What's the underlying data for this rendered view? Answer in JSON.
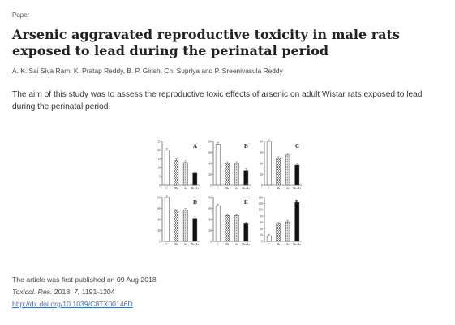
{
  "header": {
    "eyebrow": "Paper"
  },
  "article": {
    "title": "Arsenic aggravated reproductive toxicity in male rats exposed to lead during the perinatal period",
    "authors": "A. K. Sai Siva Ram, K. Pratap Reddy, B. P. Girish, Ch. Supriya and P. Sreenivasula Reddy",
    "abstract": "The aim of this study was to assess the reproductive toxic effects of arsenic on adult Wistar rats exposed to lead during the perinatal period."
  },
  "publication": {
    "published_line": "The article was first published on 09 Aug 2018",
    "journal": "Toxicol. Res.",
    "year": "2018,",
    "volume": "7,",
    "pages": "1191-1204",
    "doi": "http://dx.doi.org/10.1039/C8TX00146D"
  },
  "chart_data": [
    {
      "type": "bar",
      "panel_label": "A",
      "categories": [
        "C",
        "Pb",
        "As",
        "Pb+As"
      ],
      "values": [
        20,
        14,
        13,
        7
      ],
      "ylim": [
        0,
        25
      ],
      "ytick_labels": [
        "0",
        "5",
        "10",
        "15",
        "20",
        "25"
      ]
    },
    {
      "type": "bar",
      "panel_label": "B",
      "categories": [
        "C",
        "Pb",
        "As",
        "Pb+As"
      ],
      "values": [
        75,
        40,
        40,
        27
      ],
      "ylim": [
        0,
        80
      ],
      "ytick_labels": [
        "0",
        "20",
        "40",
        "60",
        "80"
      ]
    },
    {
      "type": "bar",
      "panel_label": "C",
      "categories": [
        "C",
        "Pb",
        "As",
        "Pb+As"
      ],
      "values": [
        80,
        49,
        55,
        37
      ],
      "ylim": [
        0,
        80
      ],
      "ytick_labels": [
        "0",
        "20",
        "40",
        "60",
        "80"
      ]
    },
    {
      "type": "bar",
      "panel_label": "D",
      "categories": [
        "C",
        "Pb",
        "As",
        "Pb+As"
      ],
      "values": [
        80,
        55,
        57,
        42
      ],
      "ylim": [
        0,
        80
      ],
      "ytick_labels": [
        "0",
        "20",
        "40",
        "60",
        "80"
      ]
    },
    {
      "type": "bar",
      "panel_label": "E",
      "categories": [
        "C",
        "Pb",
        "As",
        "Pb+As"
      ],
      "values": [
        65,
        47,
        47,
        32
      ],
      "ylim": [
        0,
        80
      ],
      "ytick_labels": [
        "0",
        "20",
        "40",
        "60",
        "80"
      ]
    },
    {
      "type": "bar",
      "panel_label": "F",
      "categories": [
        "C",
        "Pb",
        "As",
        "Pb+As"
      ],
      "values": [
        18,
        55,
        62,
        124
      ],
      "ylim": [
        0,
        140
      ],
      "ytick_labels": [
        "0",
        "20",
        "40",
        "60",
        "80",
        "100",
        "120",
        "140"
      ]
    }
  ],
  "colors": {
    "link": "#3a6ea8",
    "bar_solid": "#111111",
    "bar_outline": "#444444"
  }
}
